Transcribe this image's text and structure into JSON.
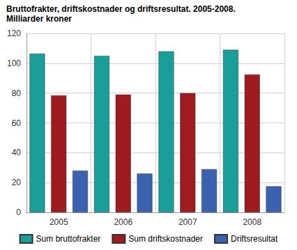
{
  "chart_data": {
    "type": "bar",
    "title": "Bruttofrakter, driftskostnader og driftsresultat. 2005-2008.",
    "subtitle": "Milliarder kroner",
    "categories": [
      "2005",
      "2006",
      "2007",
      "2008"
    ],
    "series": [
      {
        "name": "Sum bruttofrakter",
        "color": "#1a9e9a",
        "values": [
          106.5,
          105,
          108,
          109
        ]
      },
      {
        "name": "Sum driftskostnader",
        "color": "#9e1b20",
        "values": [
          78.5,
          79,
          80,
          92.5
        ]
      },
      {
        "name": "Driftsresultat",
        "color": "#3a62b0",
        "values": [
          28,
          26,
          29,
          17.5
        ]
      }
    ],
    "ylim": [
      0,
      120
    ],
    "yticks": [
      0,
      20,
      40,
      60,
      80,
      100,
      120
    ],
    "grid": true,
    "legend": "bottom"
  }
}
